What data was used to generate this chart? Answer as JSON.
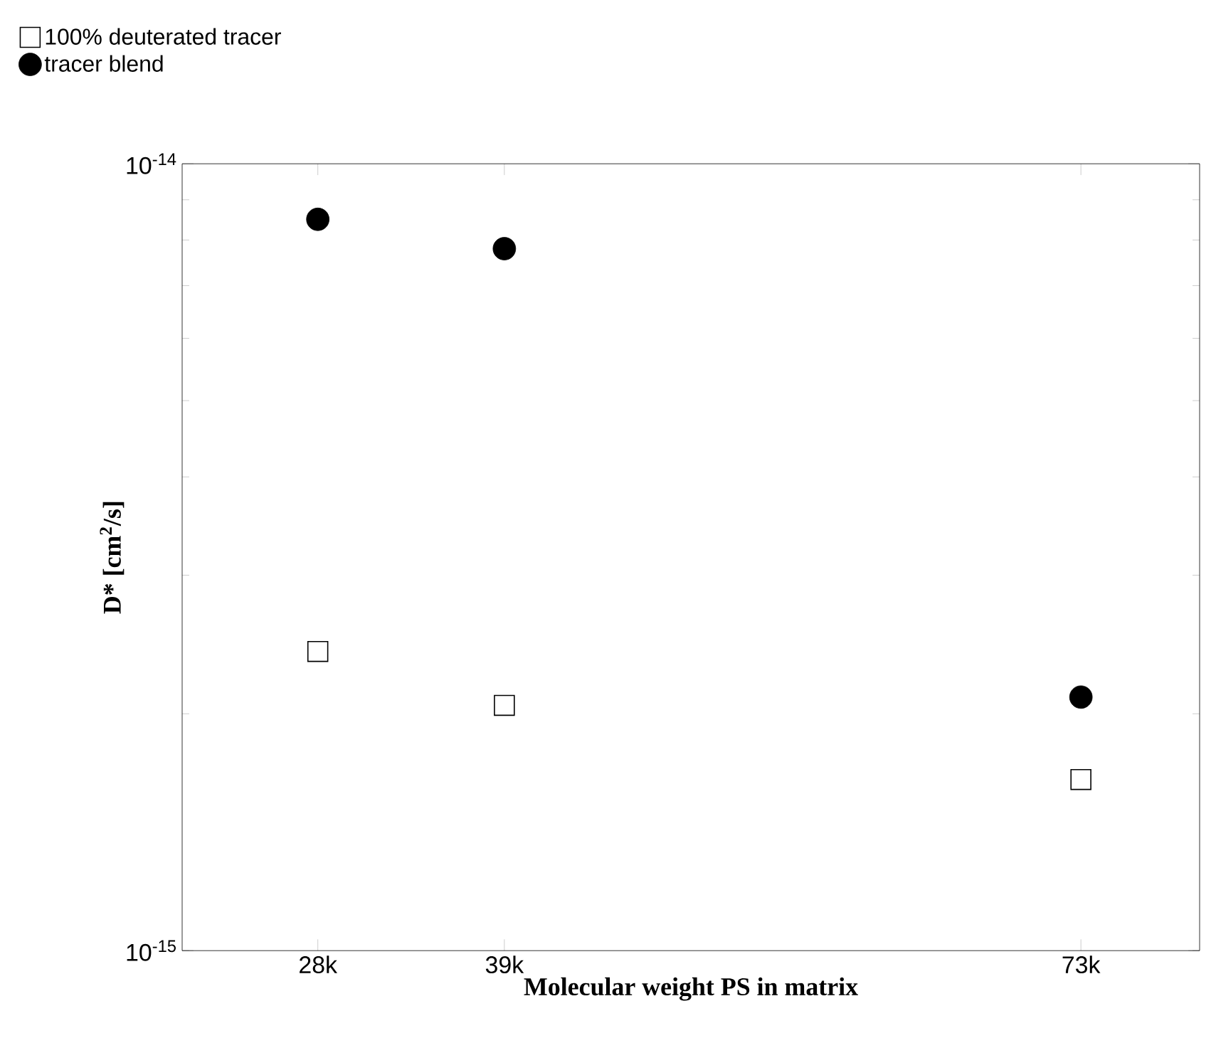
{
  "chart_data": {
    "type": "scatter",
    "xlabel": "Molecular weight PS in matrix",
    "ylabel": "D* [cm$^{2}$/s]",
    "x": [
      28,
      39,
      73
    ],
    "series": [
      {
        "name": "100% deuterated tracer",
        "color": "#000000",
        "marker": "square",
        "values": [
          2.4e-15,
          2.05e-15,
          1.65e-15
        ]
      },
      {
        "name": "tracer blend",
        "color": "#000000",
        "marker": "circle",
        "values": [
          8.5e-15,
          7.8e-15,
          2.1e-15
        ]
      }
    ],
    "log": "y",
    "xlim": [
      20,
      80
    ],
    "ylim": [
      1e-15,
      1e-14
    ],
    "xticks": [
      {
        "value": 28,
        "label": "28k"
      },
      {
        "value": 39,
        "label": "39k"
      },
      {
        "value": 73,
        "label": "73k"
      }
    ],
    "yticks": [
      {
        "value": 1e-15,
        "label": "10$^{-15}$"
      },
      {
        "value": 1e-14,
        "label": "10$^{-14}$"
      }
    ],
    "legend": "top left",
    "grid": false
  }
}
